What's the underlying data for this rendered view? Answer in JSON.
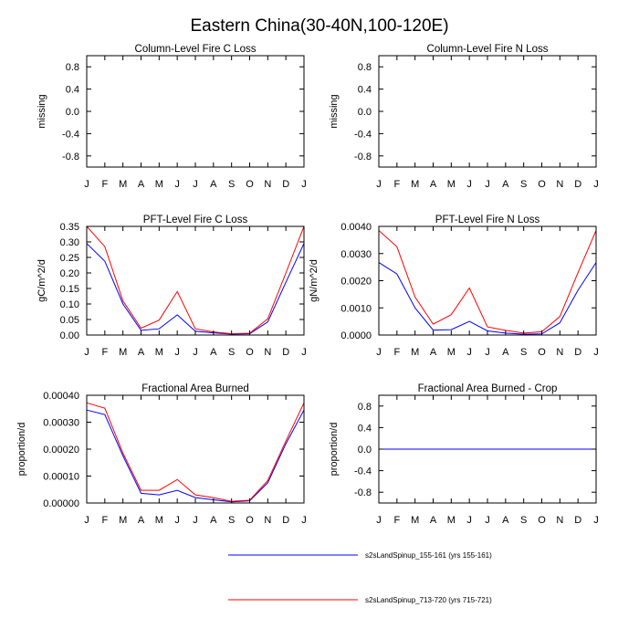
{
  "figure_title": "Eastern China(30-40N,100-120E)",
  "legend": [
    {
      "label": "s2sLandSpinup_155-161 (yrs 155-161)",
      "color": "#0000ff"
    },
    {
      "label": "s2sLandSpinup_713-720 (yrs 715-721)",
      "color": "#ff0000"
    }
  ],
  "chart_data": [
    {
      "type": "line",
      "title": "Column-Level Fire C Loss",
      "xlabel": "",
      "ylabel": "missing",
      "categories": [
        "J",
        "F",
        "M",
        "A",
        "M",
        "J",
        "J",
        "A",
        "S",
        "O",
        "N",
        "D",
        "J"
      ],
      "yticks": [
        "-0.8",
        "-0.4",
        "0.0",
        "0.4",
        "0.8"
      ],
      "ytick_values": [
        -0.8,
        -0.4,
        0,
        0.4,
        0.8
      ],
      "ylim": [
        -1,
        1
      ],
      "series": []
    },
    {
      "type": "line",
      "title": "Column-Level Fire N Loss",
      "xlabel": "",
      "ylabel": "missing",
      "categories": [
        "J",
        "F",
        "M",
        "A",
        "M",
        "J",
        "J",
        "A",
        "S",
        "O",
        "N",
        "D",
        "J"
      ],
      "yticks": [
        "-0.8",
        "-0.4",
        "0.0",
        "0.4",
        "0.8"
      ],
      "ytick_values": [
        -0.8,
        -0.4,
        0,
        0.4,
        0.8
      ],
      "ylim": [
        -1,
        1
      ],
      "series": []
    },
    {
      "type": "line",
      "title": "PFT-Level Fire C Loss",
      "xlabel": "",
      "ylabel": "gC/m^2/d",
      "categories": [
        "J",
        "F",
        "M",
        "A",
        "M",
        "J",
        "J",
        "A",
        "S",
        "O",
        "N",
        "D",
        "J"
      ],
      "yticks": [
        "0.00",
        "0.05",
        "0.10",
        "0.15",
        "0.20",
        "0.25",
        "0.30",
        "0.35"
      ],
      "ytick_values": [
        0,
        0.05,
        0.1,
        0.15,
        0.2,
        0.25,
        0.3,
        0.35
      ],
      "ylim": [
        0,
        0.35
      ],
      "series": [
        {
          "name": "s2sLandSpinup_155-161 (yrs 155-161)",
          "color": "#0000ff",
          "values": [
            0.295,
            0.238,
            0.1,
            0.015,
            0.02,
            0.065,
            0.012,
            0.007,
            0.003,
            0.004,
            0.042,
            0.17,
            0.295
          ]
        },
        {
          "name": "s2sLandSpinup_713-720 (yrs 715-721)",
          "color": "#ff0000",
          "values": [
            0.35,
            0.285,
            0.11,
            0.022,
            0.048,
            0.14,
            0.02,
            0.01,
            0.004,
            0.006,
            0.052,
            0.2,
            0.35
          ]
        }
      ]
    },
    {
      "type": "line",
      "title": "PFT-Level Fire N Loss",
      "xlabel": "",
      "ylabel": "gN/m^2/d",
      "categories": [
        "J",
        "F",
        "M",
        "A",
        "M",
        "J",
        "J",
        "A",
        "S",
        "O",
        "N",
        "D",
        "J"
      ],
      "yticks": [
        "0.0000",
        "0.0010",
        "0.0020",
        "0.0030",
        "0.0040"
      ],
      "ytick_values": [
        0,
        0.001,
        0.002,
        0.003,
        0.004
      ],
      "ylim": [
        0,
        0.004
      ],
      "series": [
        {
          "name": "s2sLandSpinup_155-161 (yrs 155-161)",
          "color": "#0000ff",
          "values": [
            0.00267,
            0.00225,
            0.001,
            0.00018,
            0.0002,
            0.0005,
            0.00015,
            7e-05,
            3e-05,
            4e-05,
            0.00045,
            0.00165,
            0.00267
          ]
        },
        {
          "name": "s2sLandSpinup_713-720 (yrs 715-721)",
          "color": "#ff0000",
          "values": [
            0.00385,
            0.00325,
            0.0014,
            0.0004,
            0.00075,
            0.00173,
            0.0003,
            0.00017,
            7e-05,
            0.00012,
            0.00068,
            0.0023,
            0.00385
          ]
        }
      ]
    },
    {
      "type": "line",
      "title": "Fractional Area Burned",
      "xlabel": "",
      "ylabel": "proportion/d",
      "categories": [
        "J",
        "F",
        "M",
        "A",
        "M",
        "J",
        "J",
        "A",
        "S",
        "O",
        "N",
        "D",
        "J"
      ],
      "yticks": [
        "0.00000",
        "0.00010",
        "0.00020",
        "0.00030",
        "0.00040"
      ],
      "ytick_values": [
        0,
        0.0001,
        0.0002,
        0.0003,
        0.0004
      ],
      "ylim": [
        0,
        0.0004
      ],
      "series": [
        {
          "name": "s2sLandSpinup_155-161 (yrs 155-161)",
          "color": "#0000ff",
          "values": [
            0.000345,
            0.000328,
            0.000175,
            3.6e-05,
            3e-05,
            4.7e-05,
            2e-05,
            1.2e-05,
            4e-06,
            8e-06,
            7.5e-05,
            0.00022,
            0.000345
          ]
        },
        {
          "name": "s2sLandSpinup_713-720 (yrs 715-721)",
          "color": "#ff0000",
          "values": [
            0.000372,
            0.000352,
            0.000185,
            4.7e-05,
            4.7e-05,
            8.7e-05,
            3e-05,
            2e-05,
            6e-06,
            1e-05,
            8.3e-05,
            0.00023,
            0.000372
          ]
        }
      ]
    },
    {
      "type": "line",
      "title": "Fractional Area Burned - Crop",
      "xlabel": "",
      "ylabel": "proportion/d",
      "categories": [
        "J",
        "F",
        "M",
        "A",
        "M",
        "J",
        "J",
        "A",
        "S",
        "O",
        "N",
        "D",
        "J"
      ],
      "yticks": [
        "-0.8",
        "-0.4",
        "0.0",
        "0.4",
        "0.8"
      ],
      "ytick_values": [
        -0.8,
        -0.4,
        0,
        0.4,
        0.8
      ],
      "ylim": [
        -1,
        1
      ],
      "series": [
        {
          "name": "s2sLandSpinup_713-720 (yrs 715-721)",
          "color": "#ff0000",
          "values": [
            0,
            0,
            0,
            0,
            0,
            0,
            0,
            0,
            0,
            0,
            0,
            0,
            0
          ]
        },
        {
          "name": "s2sLandSpinup_155-161 (yrs 155-161)",
          "color": "#0000ff",
          "values": [
            0,
            0,
            0,
            0,
            0,
            0,
            0,
            0,
            0,
            0,
            0,
            0,
            0
          ]
        }
      ]
    }
  ]
}
